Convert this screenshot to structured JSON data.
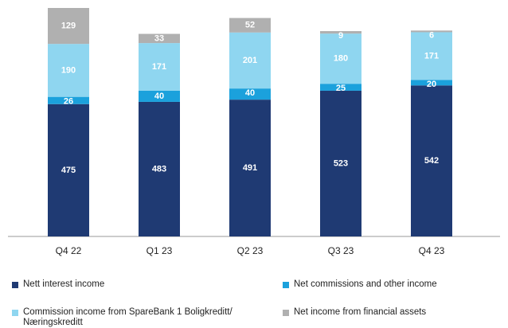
{
  "chart_data": {
    "type": "stacked_bar",
    "categories": [
      "Q4 22",
      "Q1 23",
      "Q2 23",
      "Q3 23",
      "Q4 23"
    ],
    "series": [
      {
        "name": "Nett interest income",
        "color": "#1f3a73",
        "values": [
          475,
          483,
          491,
          523,
          542
        ]
      },
      {
        "name": "Net commissions and other income",
        "color": "#1ba1dc",
        "values": [
          26,
          40,
          40,
          25,
          20
        ]
      },
      {
        "name": "Commission income from SpareBank 1 Boligkreditt/ Næringskreditt",
        "color": "#8fd6f0",
        "values": [
          190,
          171,
          201,
          180,
          171
        ]
      },
      {
        "name": "Net income from financial assets",
        "color": "#b0b0b0",
        "values": [
          129,
          33,
          52,
          9,
          6
        ]
      }
    ],
    "ylim": [
      0,
      830
    ],
    "grid": false
  }
}
